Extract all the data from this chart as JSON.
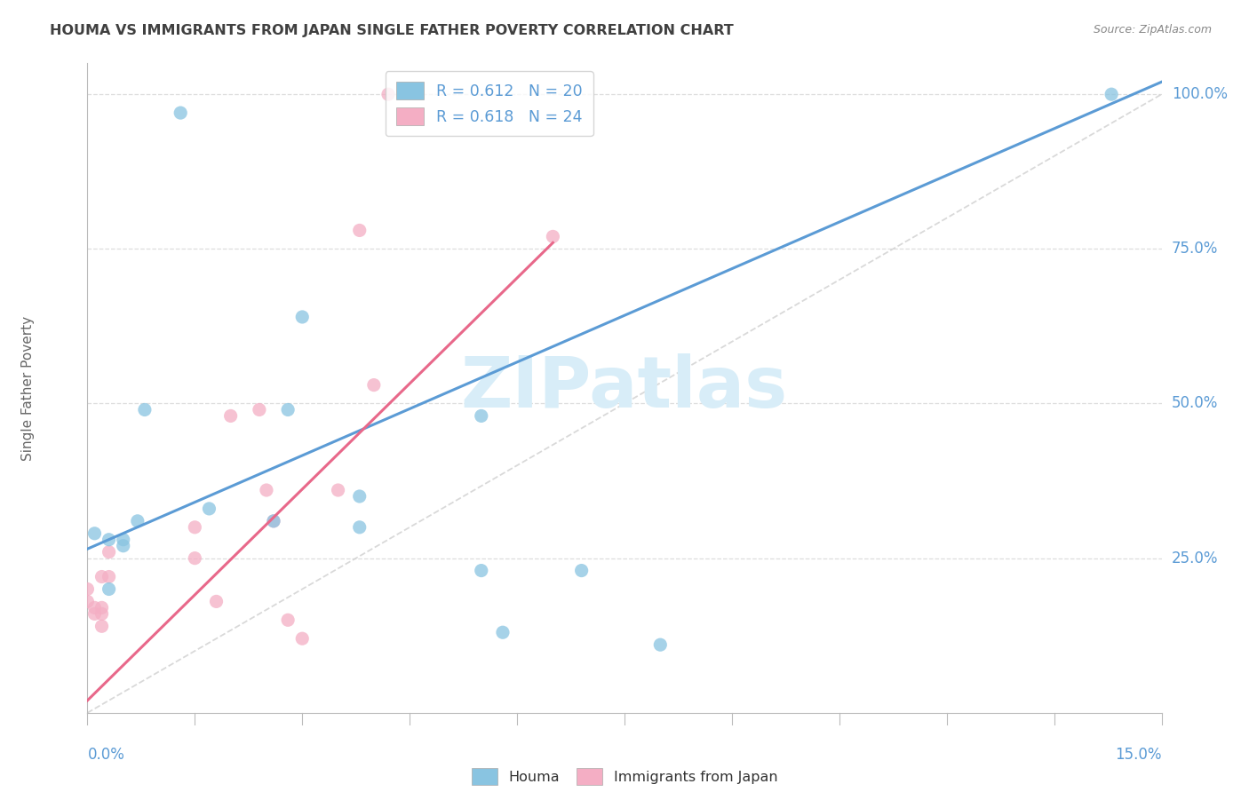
{
  "title": "HOUMA VS IMMIGRANTS FROM JAPAN SINGLE FATHER POVERTY CORRELATION CHART",
  "source": "Source: ZipAtlas.com",
  "ylabel": "Single Father Poverty",
  "legend_blue": {
    "R": "0.612",
    "N": "20",
    "label": "Houma"
  },
  "legend_pink": {
    "R": "0.618",
    "N": "24",
    "label": "Immigrants from Japan"
  },
  "houma_x": [
    0.001,
    0.013,
    0.005,
    0.005,
    0.007,
    0.003,
    0.003,
    0.008,
    0.017,
    0.026,
    0.028,
    0.038,
    0.038,
    0.03,
    0.055,
    0.055,
    0.058,
    0.069,
    0.08,
    0.143
  ],
  "houma_y": [
    0.29,
    0.97,
    0.28,
    0.27,
    0.31,
    0.2,
    0.28,
    0.49,
    0.33,
    0.31,
    0.49,
    0.3,
    0.35,
    0.64,
    0.48,
    0.23,
    0.13,
    0.23,
    0.11,
    1.0
  ],
  "japan_x": [
    0.0,
    0.0,
    0.001,
    0.001,
    0.002,
    0.002,
    0.002,
    0.002,
    0.003,
    0.003,
    0.015,
    0.015,
    0.018,
    0.02,
    0.024,
    0.025,
    0.026,
    0.028,
    0.03,
    0.035,
    0.038,
    0.04,
    0.042,
    0.065
  ],
  "japan_y": [
    0.18,
    0.2,
    0.17,
    0.16,
    0.17,
    0.14,
    0.22,
    0.16,
    0.22,
    0.26,
    0.25,
    0.3,
    0.18,
    0.48,
    0.49,
    0.36,
    0.31,
    0.15,
    0.12,
    0.36,
    0.78,
    0.53,
    1.0,
    0.77
  ],
  "blue_line": {
    "x0": 0.0,
    "y0": 0.265,
    "x1": 0.15,
    "y1": 1.02
  },
  "pink_line": {
    "x0": 0.0,
    "y0": 0.02,
    "x1": 0.065,
    "y1": 0.76
  },
  "blue_color": "#89c4e1",
  "pink_color": "#f4aec4",
  "blue_line_color": "#5b9bd5",
  "pink_line_color": "#e8688a",
  "diagonal_color": "#d0d0d0",
  "background_color": "#ffffff",
  "grid_color": "#dddddd",
  "title_color": "#404040",
  "axis_label_color": "#5b9bd5",
  "source_color": "#888888",
  "watermark_color": "#d8edf8",
  "watermark": "ZIPatlas",
  "xlim": [
    0,
    0.15
  ],
  "ylim": [
    0,
    1.05
  ],
  "yticks": [
    0.25,
    0.5,
    0.75,
    1.0
  ],
  "ytick_labels": [
    "25.0%",
    "50.0%",
    "75.0%",
    "100.0%"
  ]
}
